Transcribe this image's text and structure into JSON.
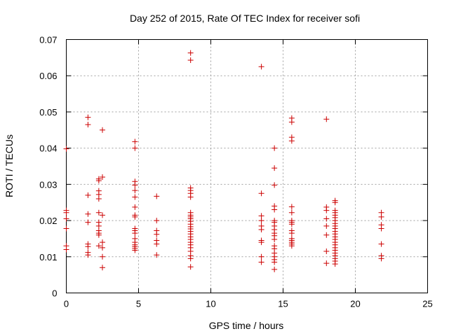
{
  "chart_data": {
    "type": "scatter",
    "title": "Day 252 of 2015, Rate Of TEC Index for receiver sofi",
    "xlabel": "GPS time / hours",
    "ylabel": "ROTI / TECUs",
    "xlim": [
      0,
      25
    ],
    "ylim": [
      0,
      0.07
    ],
    "x_ticks": [
      0,
      5,
      10,
      15,
      20,
      25
    ],
    "y_ticks": [
      0,
      0.01,
      0.02,
      0.03,
      0.04,
      0.05,
      0.06,
      0.07
    ],
    "x_tick_labels": [
      "0",
      "5",
      "10",
      "15",
      "20",
      "25"
    ],
    "y_tick_labels": [
      "0",
      "0.01",
      "0.02",
      "0.03",
      "0.04",
      "0.05",
      "0.06",
      "0.07"
    ],
    "grid": true,
    "marker": "+",
    "marker_color": "#cc0000",
    "series": [
      {
        "points": [
          [
            0.0,
            0.0398
          ],
          [
            0.0,
            0.0228
          ],
          [
            0.0,
            0.0222
          ],
          [
            0.0,
            0.0205
          ],
          [
            0.0,
            0.0178
          ],
          [
            0.0,
            0.013
          ],
          [
            0.0,
            0.012
          ],
          [
            1.5,
            0.0485
          ],
          [
            1.5,
            0.0465
          ],
          [
            1.5,
            0.027
          ],
          [
            1.5,
            0.0218
          ],
          [
            1.5,
            0.0195
          ],
          [
            1.5,
            0.0135
          ],
          [
            1.5,
            0.0128
          ],
          [
            1.5,
            0.0112
          ],
          [
            1.5,
            0.0105
          ],
          [
            2.25,
            0.0315
          ],
          [
            2.25,
            0.031
          ],
          [
            2.25,
            0.0282
          ],
          [
            2.25,
            0.0272
          ],
          [
            2.25,
            0.026
          ],
          [
            2.25,
            0.0222
          ],
          [
            2.25,
            0.0195
          ],
          [
            2.25,
            0.0185
          ],
          [
            2.25,
            0.0172
          ],
          [
            2.25,
            0.0165
          ],
          [
            2.25,
            0.016
          ],
          [
            2.25,
            0.013
          ],
          [
            2.5,
            0.045
          ],
          [
            2.5,
            0.032
          ],
          [
            2.5,
            0.0215
          ],
          [
            2.5,
            0.014
          ],
          [
            2.5,
            0.0125
          ],
          [
            2.5,
            0.01
          ],
          [
            2.5,
            0.007
          ],
          [
            4.75,
            0.0418
          ],
          [
            4.75,
            0.04
          ],
          [
            4.75,
            0.0308
          ],
          [
            4.75,
            0.0298
          ],
          [
            4.75,
            0.0283
          ],
          [
            4.75,
            0.0265
          ],
          [
            4.75,
            0.0237
          ],
          [
            4.75,
            0.0215
          ],
          [
            4.75,
            0.021
          ],
          [
            4.75,
            0.0178
          ],
          [
            4.75,
            0.0172
          ],
          [
            4.75,
            0.0165
          ],
          [
            4.75,
            0.015
          ],
          [
            4.75,
            0.014
          ],
          [
            4.75,
            0.0133
          ],
          [
            4.75,
            0.0128
          ],
          [
            4.75,
            0.0123
          ],
          [
            4.75,
            0.0118
          ],
          [
            6.25,
            0.0267
          ],
          [
            6.25,
            0.02
          ],
          [
            6.25,
            0.0172
          ],
          [
            6.25,
            0.0162
          ],
          [
            6.25,
            0.0145
          ],
          [
            6.25,
            0.0135
          ],
          [
            6.25,
            0.0105
          ],
          [
            8.6,
            0.0663
          ],
          [
            8.6,
            0.0643
          ],
          [
            8.6,
            0.029
          ],
          [
            8.6,
            0.0283
          ],
          [
            8.6,
            0.0275
          ],
          [
            8.6,
            0.0265
          ],
          [
            8.6,
            0.0222
          ],
          [
            8.6,
            0.0215
          ],
          [
            8.6,
            0.021
          ],
          [
            8.6,
            0.0205
          ],
          [
            8.6,
            0.0198
          ],
          [
            8.6,
            0.019
          ],
          [
            8.6,
            0.0183
          ],
          [
            8.6,
            0.0177
          ],
          [
            8.6,
            0.017
          ],
          [
            8.6,
            0.0163
          ],
          [
            8.6,
            0.0155
          ],
          [
            8.6,
            0.0148
          ],
          [
            8.6,
            0.014
          ],
          [
            8.6,
            0.0133
          ],
          [
            8.6,
            0.0125
          ],
          [
            8.6,
            0.0115
          ],
          [
            8.6,
            0.0103
          ],
          [
            8.6,
            0.0095
          ],
          [
            8.6,
            0.0072
          ],
          [
            13.5,
            0.0625
          ],
          [
            13.5,
            0.0275
          ],
          [
            13.5,
            0.0213
          ],
          [
            13.5,
            0.02
          ],
          [
            13.5,
            0.0185
          ],
          [
            13.5,
            0.0175
          ],
          [
            13.5,
            0.0145
          ],
          [
            13.5,
            0.014
          ],
          [
            13.5,
            0.01
          ],
          [
            13.5,
            0.0085
          ],
          [
            14.4,
            0.04
          ],
          [
            14.4,
            0.0345
          ],
          [
            14.4,
            0.0298
          ],
          [
            14.4,
            0.024
          ],
          [
            14.4,
            0.023
          ],
          [
            14.4,
            0.02
          ],
          [
            14.4,
            0.0195
          ],
          [
            14.4,
            0.0185
          ],
          [
            14.4,
            0.0175
          ],
          [
            14.4,
            0.0165
          ],
          [
            14.4,
            0.0158
          ],
          [
            14.4,
            0.0148
          ],
          [
            14.4,
            0.013
          ],
          [
            14.4,
            0.0122
          ],
          [
            14.4,
            0.011
          ],
          [
            14.4,
            0.01
          ],
          [
            14.4,
            0.0092
          ],
          [
            14.4,
            0.0085
          ],
          [
            14.4,
            0.0065
          ],
          [
            15.6,
            0.0483
          ],
          [
            15.6,
            0.0472
          ],
          [
            15.6,
            0.043
          ],
          [
            15.6,
            0.042
          ],
          [
            15.6,
            0.0238
          ],
          [
            15.6,
            0.0222
          ],
          [
            15.6,
            0.02
          ],
          [
            15.6,
            0.0195
          ],
          [
            15.6,
            0.019
          ],
          [
            15.6,
            0.0172
          ],
          [
            15.6,
            0.0165
          ],
          [
            15.6,
            0.015
          ],
          [
            15.6,
            0.0145
          ],
          [
            15.6,
            0.014
          ],
          [
            15.6,
            0.0135
          ],
          [
            15.6,
            0.013
          ],
          [
            18.0,
            0.048
          ],
          [
            18.0,
            0.0237
          ],
          [
            18.0,
            0.0228
          ],
          [
            18.0,
            0.0205
          ],
          [
            18.0,
            0.0185
          ],
          [
            18.0,
            0.016
          ],
          [
            18.0,
            0.0115
          ],
          [
            18.0,
            0.0082
          ],
          [
            18.6,
            0.0255
          ],
          [
            18.6,
            0.025
          ],
          [
            18.6,
            0.0228
          ],
          [
            18.6,
            0.0222
          ],
          [
            18.6,
            0.0215
          ],
          [
            18.6,
            0.0208
          ],
          [
            18.6,
            0.02
          ],
          [
            18.6,
            0.0192
          ],
          [
            18.6,
            0.0185
          ],
          [
            18.6,
            0.0178
          ],
          [
            18.6,
            0.017
          ],
          [
            18.6,
            0.0163
          ],
          [
            18.6,
            0.0155
          ],
          [
            18.6,
            0.0148
          ],
          [
            18.6,
            0.014
          ],
          [
            18.6,
            0.0133
          ],
          [
            18.6,
            0.0125
          ],
          [
            18.6,
            0.0118
          ],
          [
            18.6,
            0.011
          ],
          [
            18.6,
            0.0103
          ],
          [
            18.6,
            0.0095
          ],
          [
            18.6,
            0.0088
          ],
          [
            18.6,
            0.008
          ],
          [
            21.8,
            0.0222
          ],
          [
            21.8,
            0.021
          ],
          [
            21.8,
            0.0188
          ],
          [
            21.8,
            0.0178
          ],
          [
            21.8,
            0.0135
          ],
          [
            21.8,
            0.0103
          ],
          [
            21.8,
            0.0095
          ]
        ]
      }
    ]
  }
}
